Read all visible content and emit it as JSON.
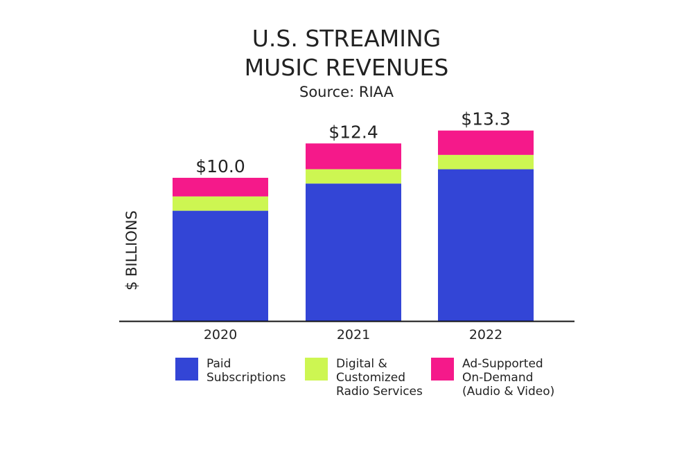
{
  "chart_data": {
    "type": "bar",
    "stacked": true,
    "title_lines": [
      "U.S. STREAMING",
      "MUSIC REVENUES"
    ],
    "subtitle": "Source: RIAA",
    "ylabel": "$ BILLIONS",
    "xlabel": "",
    "categories": [
      "2020",
      "2021",
      "2022"
    ],
    "totals_labels": [
      "$10.0",
      "$12.4",
      "$13.3"
    ],
    "totals": [
      10.0,
      12.4,
      13.3
    ],
    "ylim": [
      0,
      14
    ],
    "series": [
      {
        "name": "Paid\nSubscriptions",
        "color": "#3345d6",
        "values": [
          7.7,
          9.6,
          10.6
        ]
      },
      {
        "name": "Digital &\nCustomized\nRadio Services",
        "color": "#cdf652",
        "values": [
          1.0,
          1.0,
          1.0
        ]
      },
      {
        "name": "Ad-Supported\nOn-Demand\n(Audio & Video)",
        "color": "#f5198a",
        "values": [
          1.3,
          1.8,
          1.7
        ]
      }
    ],
    "grid": false,
    "legend_position": "bottom"
  }
}
